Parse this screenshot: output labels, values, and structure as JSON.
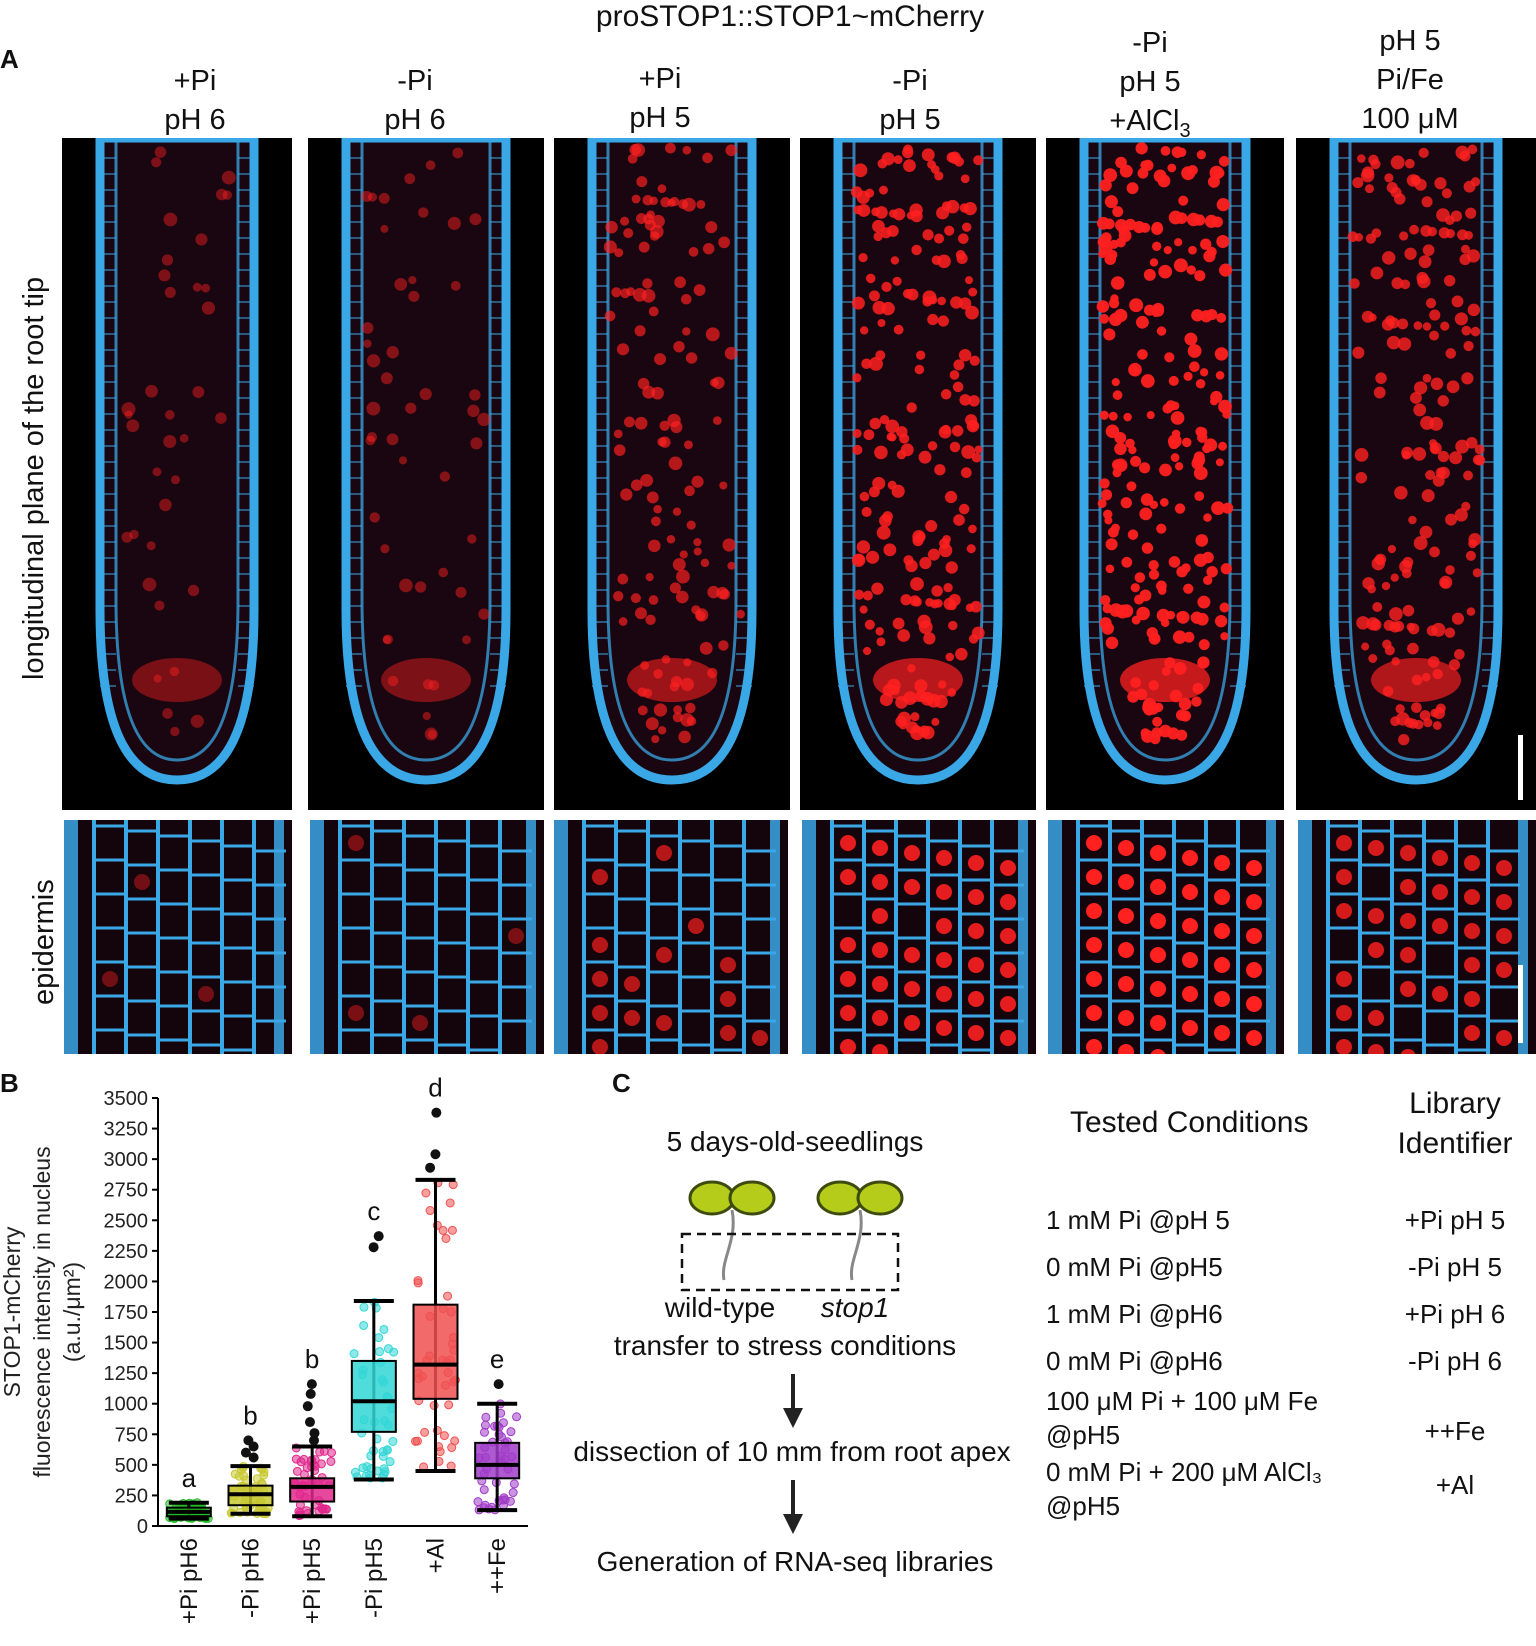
{
  "figure_title": "proSTOP1::STOP1~mCherry",
  "panel_labels": {
    "a": "A",
    "b": "B",
    "c": "C"
  },
  "panel_a": {
    "columns": [
      {
        "lines": [
          "+Pi",
          "pH 6"
        ]
      },
      {
        "lines": [
          "-Pi",
          "pH 6"
        ]
      },
      {
        "lines": [
          "+Pi",
          "pH 5"
        ]
      },
      {
        "lines": [
          "-Pi",
          "pH 5"
        ]
      },
      {
        "lines": [
          "-Pi",
          "pH 5",
          "+AlCl3"
        ]
      },
      {
        "lines": [
          "pH 5",
          "Pi/Fe",
          "100 μM"
        ]
      }
    ],
    "row_labels": {
      "top": "longitudinal plane of the root tip",
      "bottom": "epidermis"
    },
    "colors": {
      "cell_wall": "#3aa7e6",
      "nucleus": "#ff2020",
      "background": "#000000"
    },
    "red_signal_level": [
      0.15,
      0.2,
      0.55,
      0.85,
      1.0,
      0.75
    ]
  },
  "panel_b": {
    "ylabel_lines": [
      "STOP1-mCherry",
      "fluorescence intensity in nucleus",
      "(a.u./μm²)"
    ]
  },
  "chart_data": {
    "type": "box",
    "categories": [
      "+Pi pH6",
      "-Pi pH6",
      "+Pi pH5",
      "-Pi pH5",
      "+Al",
      "++Fe"
    ],
    "yticks": [
      0,
      250,
      500,
      750,
      1000,
      1250,
      1500,
      1750,
      2000,
      2250,
      2500,
      2750,
      3000,
      3250,
      3500
    ],
    "ylim": [
      0,
      3500
    ],
    "boxes": [
      {
        "name": "+Pi pH6",
        "letter": "a",
        "color": "#22bb22",
        "min": 60,
        "q1": 80,
        "median": 115,
        "q3": 150,
        "max": 190,
        "outliers": []
      },
      {
        "name": "-Pi pH6",
        "letter": "b",
        "color": "#c8c832",
        "min": 100,
        "q1": 170,
        "median": 260,
        "q3": 330,
        "max": 490,
        "outliers": [
          560,
          600,
          650,
          700
        ]
      },
      {
        "name": "+Pi pH5",
        "letter": "b",
        "color": "#e0288c",
        "min": 80,
        "q1": 200,
        "median": 320,
        "q3": 390,
        "max": 650,
        "outliers": [
          700,
          760,
          850,
          980,
          1080,
          1160
        ]
      },
      {
        "name": "-Pi pH5",
        "letter": "c",
        "color": "#33d6d6",
        "min": 380,
        "q1": 770,
        "median": 1020,
        "q3": 1350,
        "max": 1840,
        "outliers": [
          2280,
          2370
        ]
      },
      {
        "name": "+Al",
        "letter": "d",
        "color": "#f05050",
        "min": 450,
        "q1": 1040,
        "median": 1320,
        "q3": 1810,
        "max": 2830,
        "outliers": [
          2930,
          3040,
          3380
        ]
      },
      {
        "name": "++Fe",
        "letter": "e",
        "color": "#a03cc8",
        "min": 130,
        "q1": 390,
        "median": 500,
        "q3": 680,
        "max": 1000,
        "outliers": [
          1160
        ]
      }
    ]
  },
  "panel_c": {
    "seedlings_label": "5 days-old-seedlings",
    "wildtype": "wild-type",
    "mutant": "stop1",
    "step1": "transfer to stress conditions",
    "step2": "dissection of 10 mm from root apex",
    "step3": "Generation of RNA-seq libraries",
    "header_conditions": "Tested Conditions",
    "header_identifier_1": "Library",
    "header_identifier_2": "Identifier",
    "rows": [
      {
        "condition": [
          "1 mM Pi @pH 5"
        ],
        "id": "+Pi pH 5"
      },
      {
        "condition": [
          "0 mM Pi @pH5"
        ],
        "id": "-Pi pH 5"
      },
      {
        "condition": [
          "1 mM Pi @pH6"
        ],
        "id": "+Pi pH 6"
      },
      {
        "condition": [
          "0 mM Pi @pH6"
        ],
        "id": "-Pi pH 6"
      },
      {
        "condition": [
          "100 μM Pi + 100 μM Fe",
          "@pH5"
        ],
        "id": "++Fe"
      },
      {
        "condition": [
          "0 mM Pi + 200 μM AlCl₃",
          "@pH5"
        ],
        "id": "+Al"
      }
    ],
    "colors": {
      "cotyledon": "#b5cc1a",
      "cotyledon_edge": "#3d4a10",
      "hypocotyl": "#888888"
    }
  }
}
